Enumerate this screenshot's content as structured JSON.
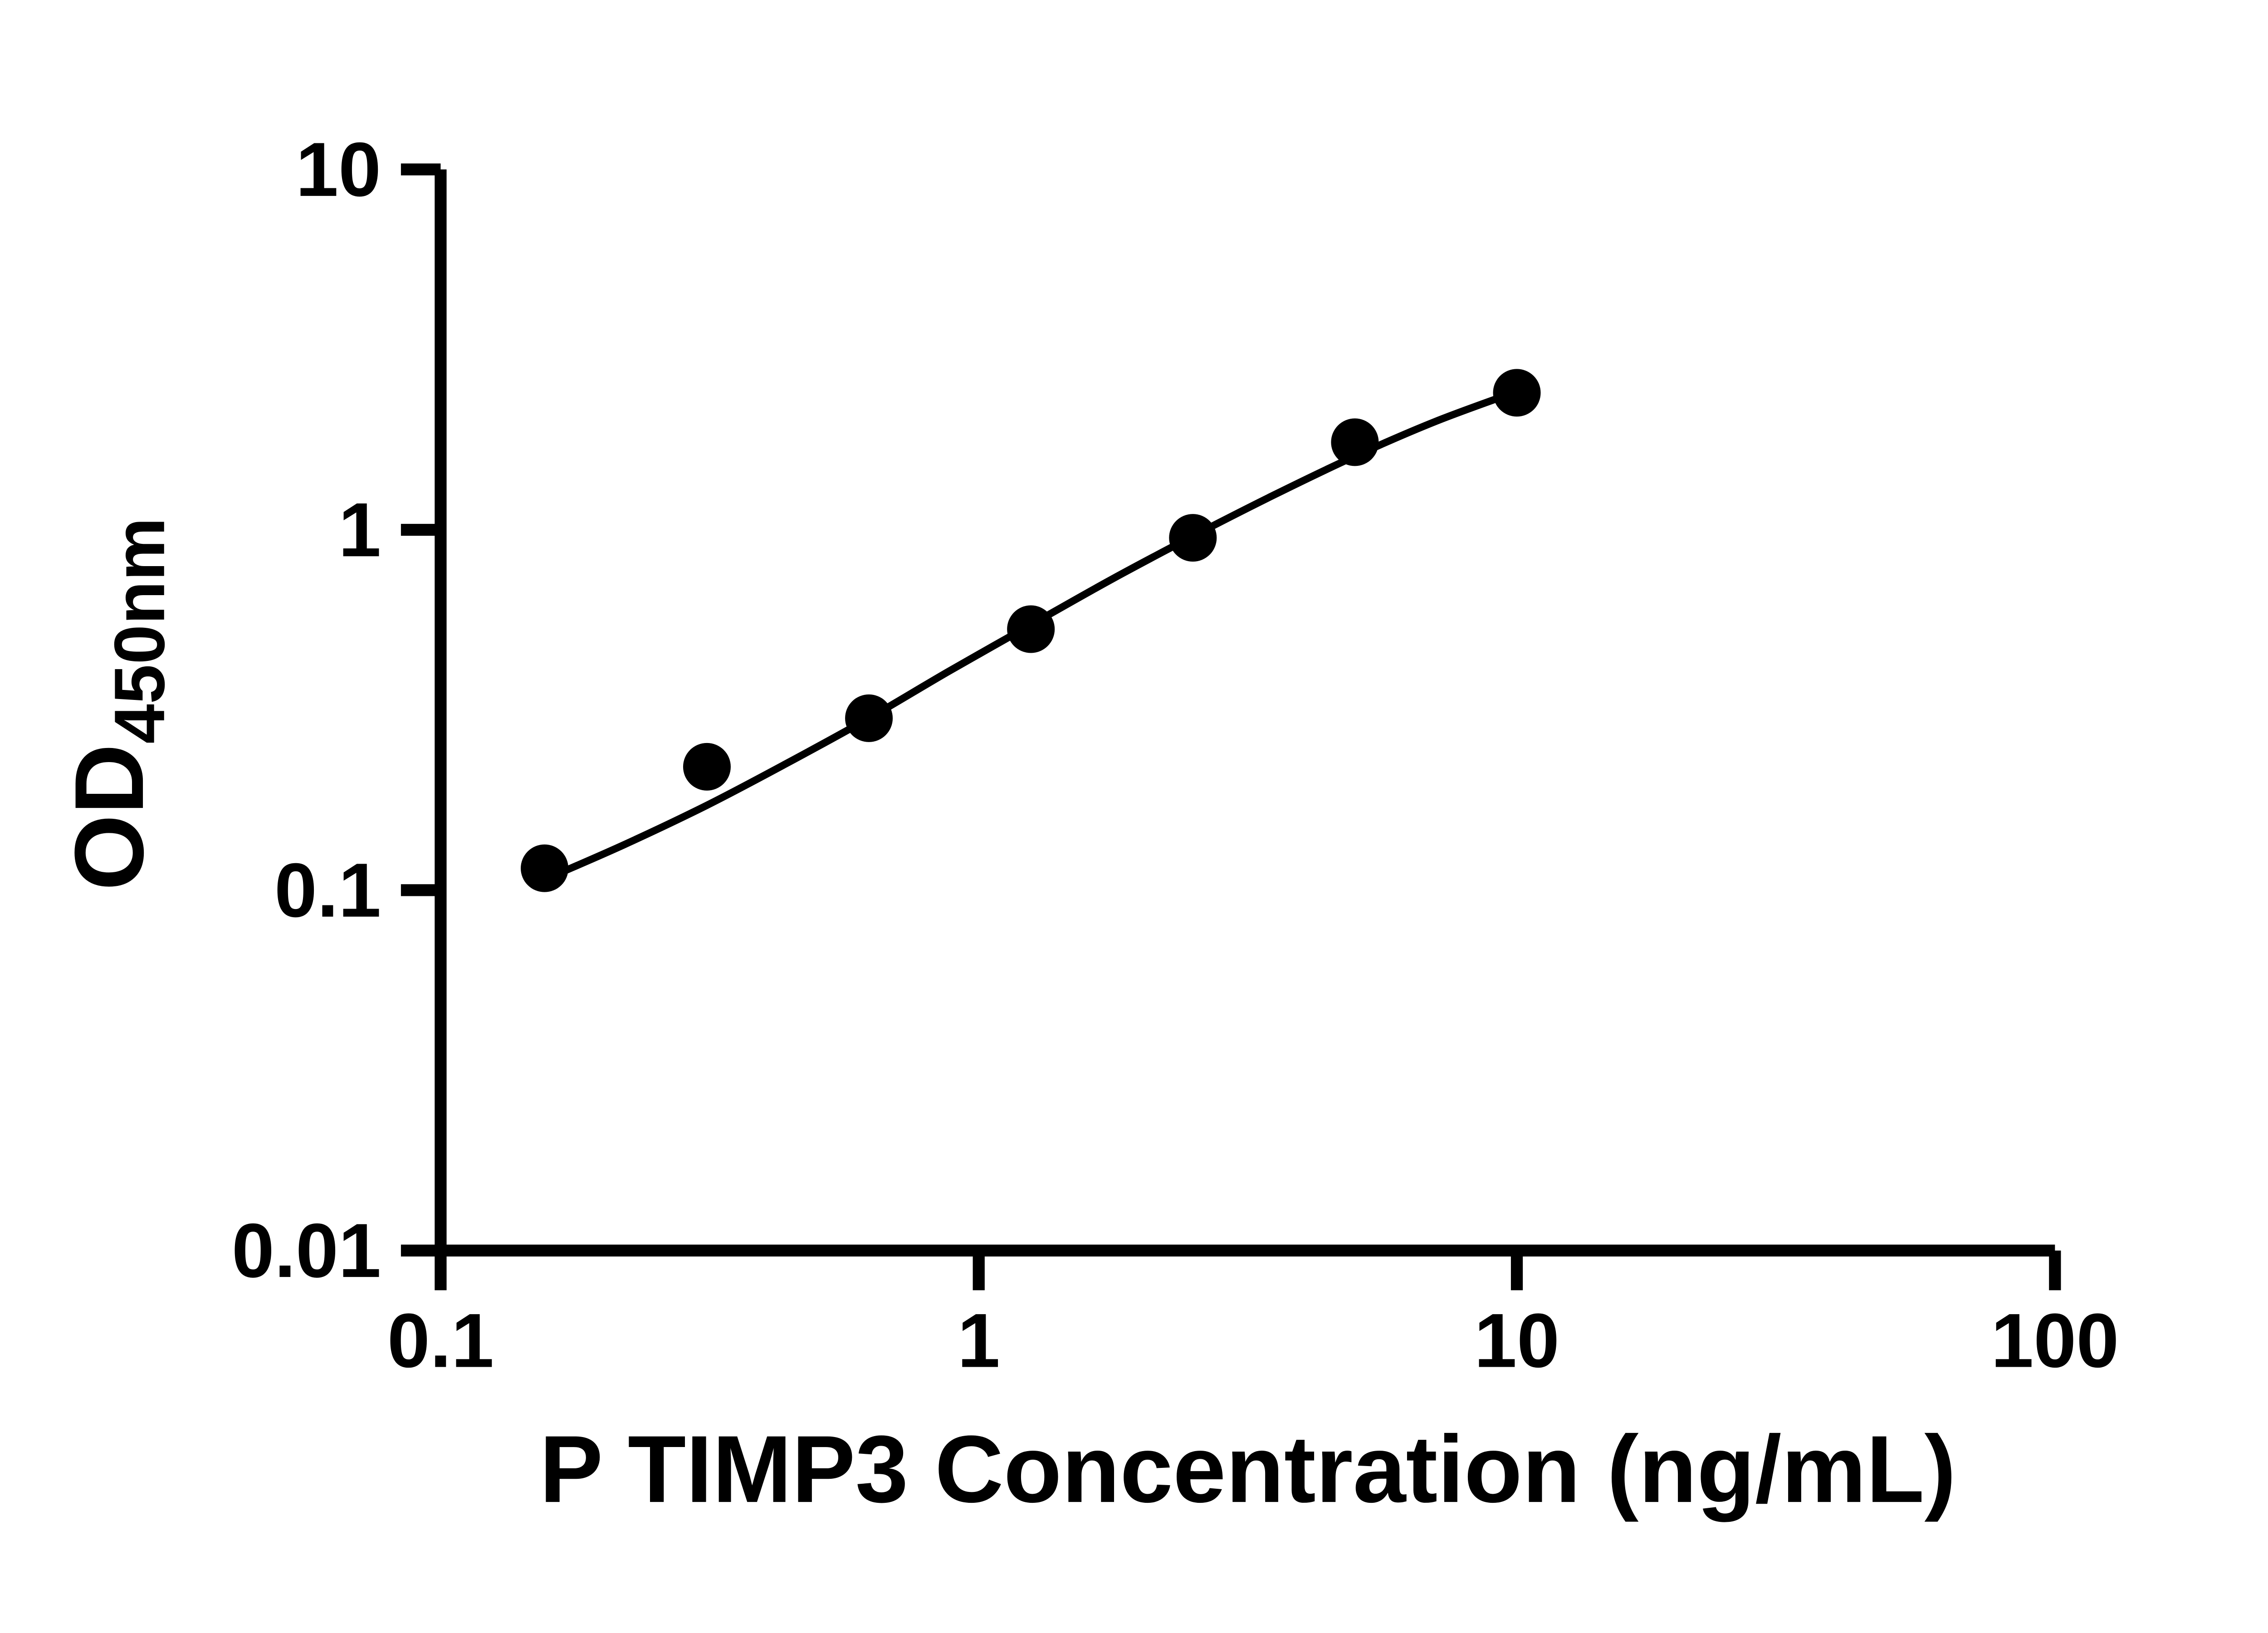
{
  "chart_data": {
    "type": "scatter",
    "title": "",
    "xlabel": "P TIMP3 Concentration (ng/mL)",
    "ylabel": "OD450nm",
    "ylabel_main": "OD",
    "ylabel_sub": "450nm",
    "x_scale": "log",
    "y_scale": "log",
    "xlim": [
      0.1,
      100
    ],
    "ylim": [
      0.01,
      10
    ],
    "x_ticks": [
      0.1,
      1,
      10,
      100
    ],
    "x_tick_labels": [
      "0.1",
      "1",
      "10",
      "100"
    ],
    "y_ticks": [
      0.01,
      0.1,
      1,
      10
    ],
    "y_tick_labels": [
      "0.01",
      "0.1",
      "1",
      "10"
    ],
    "grid": false,
    "legend": false,
    "axis_color": "#000000",
    "curve_color": "#000000",
    "background": "#ffffff",
    "series": [
      {
        "marker": "circle",
        "color": "#000000",
        "points": [
          {
            "x": 0.156,
            "y": 0.115
          },
          {
            "x": 0.3125,
            "y": 0.22
          },
          {
            "x": 0.625,
            "y": 0.3
          },
          {
            "x": 1.25,
            "y": 0.53
          },
          {
            "x": 2.5,
            "y": 0.95
          },
          {
            "x": 5,
            "y": 1.75
          },
          {
            "x": 10,
            "y": 2.4
          }
        ]
      }
    ],
    "fit_curve": [
      {
        "x": 0.156,
        "y": 0.107
      },
      {
        "x": 0.22,
        "y": 0.134
      },
      {
        "x": 0.3125,
        "y": 0.172
      },
      {
        "x": 0.44,
        "y": 0.225
      },
      {
        "x": 0.625,
        "y": 0.3
      },
      {
        "x": 0.88,
        "y": 0.405
      },
      {
        "x": 1.25,
        "y": 0.545
      },
      {
        "x": 1.77,
        "y": 0.73
      },
      {
        "x": 2.5,
        "y": 0.96
      },
      {
        "x": 3.54,
        "y": 1.25
      },
      {
        "x": 5.0,
        "y": 1.6
      },
      {
        "x": 7.07,
        "y": 2.0
      },
      {
        "x": 10.0,
        "y": 2.42
      }
    ]
  }
}
